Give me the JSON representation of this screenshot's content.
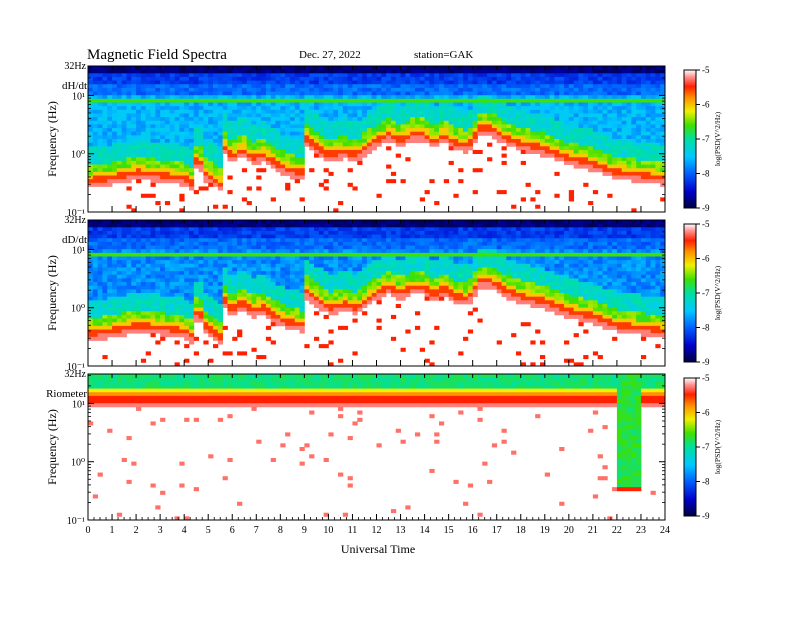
{
  "header": {
    "title": "Magnetic  Field  Spectra",
    "date": "Dec. 27, 2022",
    "station": "station=GAK"
  },
  "axes": {
    "ylabel": "Frequency  (Hz)",
    "xlabel": "Universal  Time",
    "top_label": "32Hz",
    "y_ticks": [
      "10¹",
      "10⁰",
      "10⁻¹"
    ],
    "colorbar_label": "log(PSD(V^2/Hz)"
  },
  "chart_data": {
    "type": "heatmap",
    "title": "Magnetic  Field  Spectra",
    "xlabel": "Universal  Time",
    "ylabel": "Frequency  (Hz)",
    "xlim": [
      0,
      24
    ],
    "x_ticks": [
      "0",
      "1",
      "2",
      "3",
      "4",
      "5",
      "6",
      "7",
      "8",
      "9",
      "10",
      "11",
      "12",
      "13",
      "14",
      "15",
      "16",
      "17",
      "18",
      "19",
      "20",
      "21",
      "22",
      "23",
      "24"
    ],
    "y_scale": "log",
    "ylim": [
      0.1,
      32
    ],
    "colorbar": {
      "label": "log(PSD(V^2/Hz)",
      "range": [
        -9,
        -5
      ],
      "ticks": [
        "-5",
        "-6",
        "-7",
        "-8",
        "-9"
      ]
    },
    "panels": [
      {
        "label": "dH/dt",
        "kind": "dh"
      },
      {
        "label": "dD/dt",
        "kind": "dd"
      },
      {
        "label": "Riometer",
        "kind": "rio"
      }
    ]
  }
}
